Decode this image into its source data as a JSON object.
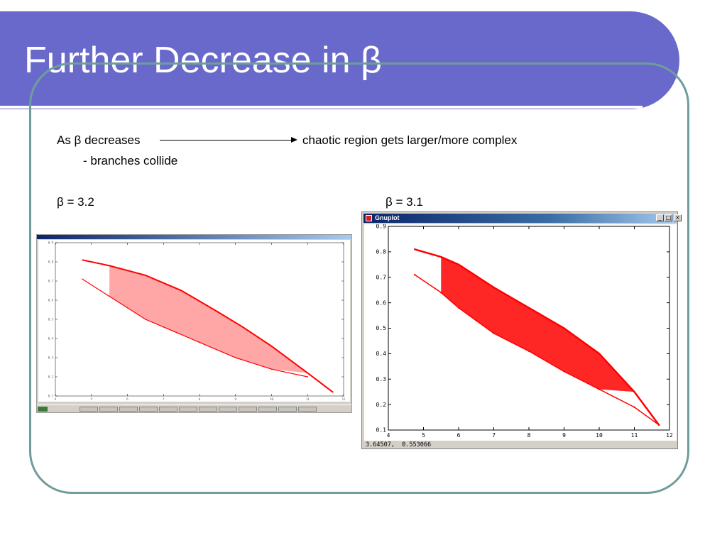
{
  "slide": {
    "title": "Further Decrease in β",
    "line1_left": "As β decreases",
    "line1_right": "chaotic region gets larger/more complex",
    "line2": "- branches collide",
    "label_left": "β = 3.2",
    "label_right": "β = 3.1"
  },
  "gnuplot_window": {
    "title": "Gnuplot",
    "buttons": {
      "minimize": "_",
      "maximize": "□",
      "close": "×"
    },
    "status_text": "3.64507,  0.553066",
    "app_icon": "gnuplot-icon"
  },
  "colors": {
    "banner": "#6969cc",
    "frame": "#6f9e9a",
    "plot_points": "#ff0000"
  },
  "chart_data": [
    {
      "type": "scatter",
      "title": "",
      "legend": "",
      "xlabel": "",
      "ylabel": "",
      "xlim": [
        4,
        12
      ],
      "ylim": [
        0.1,
        0.9
      ],
      "x_ticks": [
        4,
        5,
        6,
        7,
        8,
        9,
        10,
        11,
        12
      ],
      "y_ticks": [
        0.1,
        0.2,
        0.3,
        0.4,
        0.5,
        0.6,
        0.7,
        0.8,
        0.9
      ],
      "series": [
        {
          "description": "upper branch / chaotic band (approximate traced outline)",
          "x": [
            4.75,
            5.5,
            6.5,
            7.5,
            8.5,
            9.2,
            10.0,
            11.0,
            11.7
          ],
          "y": [
            0.81,
            0.78,
            0.73,
            0.65,
            0.54,
            0.46,
            0.36,
            0.22,
            0.12
          ]
        },
        {
          "description": "lower branch (approximate traced outline)",
          "x": [
            4.75,
            5.5,
            6.0,
            6.5,
            7.0,
            8.0,
            9.0,
            10.0,
            11.0
          ],
          "y": [
            0.71,
            0.62,
            0.56,
            0.5,
            0.46,
            0.38,
            0.3,
            0.24,
            0.2
          ]
        }
      ]
    },
    {
      "type": "scatter",
      "title": "",
      "legend": "",
      "xlabel": "",
      "ylabel": "",
      "xlim": [
        4,
        12
      ],
      "ylim": [
        0.1,
        0.9
      ],
      "x_ticks": [
        4,
        5,
        6,
        7,
        8,
        9,
        10,
        11,
        12
      ],
      "y_ticks": [
        0.1,
        0.2,
        0.3,
        0.4,
        0.5,
        0.6,
        0.7,
        0.8,
        0.9
      ],
      "series": [
        {
          "description": "upper branch (approximate traced outline)",
          "x": [
            4.75,
            5.5,
            6.0,
            7.0,
            8.0,
            9.0,
            10.0,
            11.0,
            11.7
          ],
          "y": [
            0.81,
            0.78,
            0.75,
            0.66,
            0.58,
            0.5,
            0.4,
            0.25,
            0.12
          ]
        },
        {
          "description": "lower branch (approximate traced outline)",
          "x": [
            4.75,
            5.5,
            6.0,
            6.5,
            7.0,
            8.0,
            9.0,
            10.0,
            11.0,
            11.7
          ],
          "y": [
            0.71,
            0.64,
            0.58,
            0.53,
            0.48,
            0.41,
            0.33,
            0.26,
            0.19,
            0.12
          ]
        }
      ]
    }
  ]
}
